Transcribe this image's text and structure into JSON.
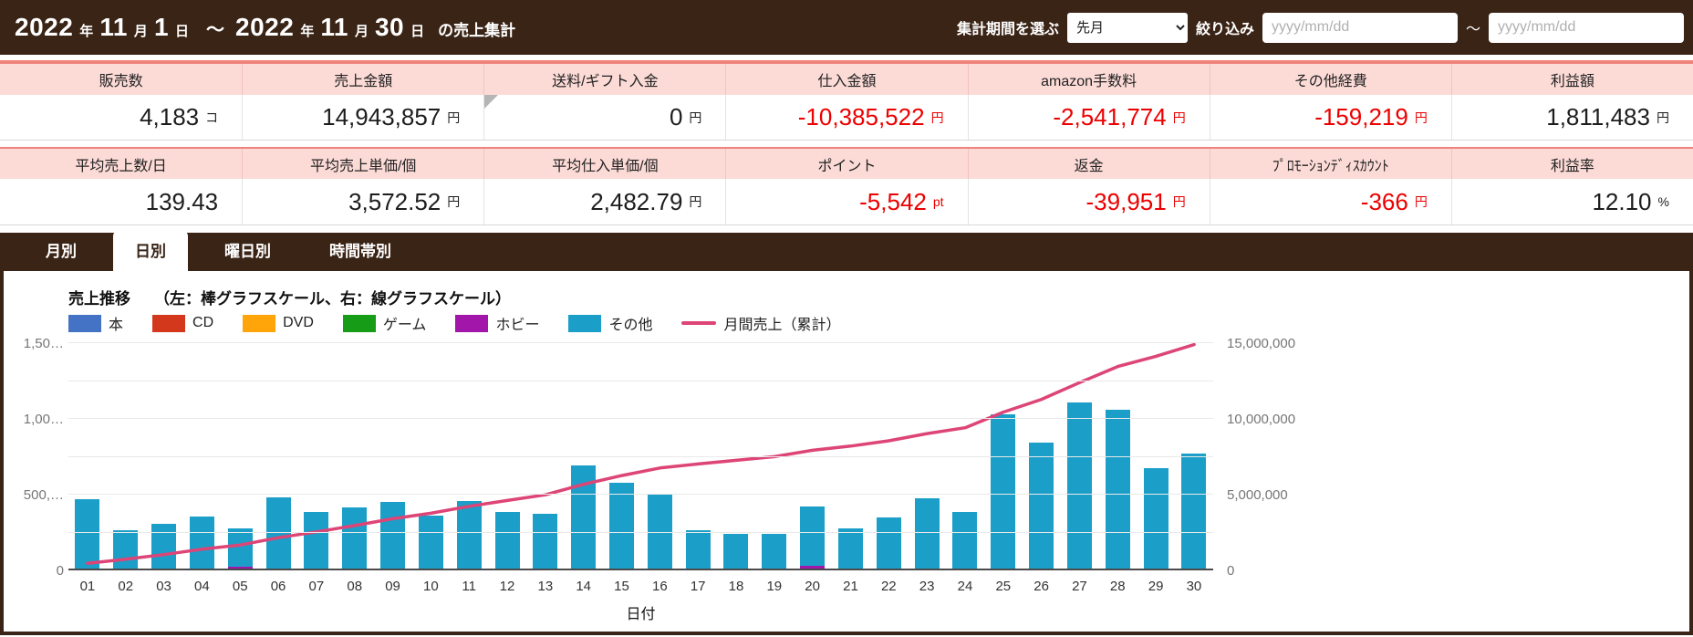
{
  "header": {
    "title_segments": [
      {
        "t": "2022",
        "s": "lg"
      },
      {
        "t": "年",
        "s": "sm"
      },
      {
        "t": "11",
        "s": "lg"
      },
      {
        "t": "月",
        "s": "sm"
      },
      {
        "t": "1",
        "s": "lg"
      },
      {
        "t": "日",
        "s": "sm"
      },
      {
        "t": "～",
        "s": "md"
      },
      {
        "t": "2022",
        "s": "lg"
      },
      {
        "t": "年",
        "s": "sm"
      },
      {
        "t": "11",
        "s": "lg"
      },
      {
        "t": "月",
        "s": "sm"
      },
      {
        "t": "30",
        "s": "lg"
      },
      {
        "t": "日",
        "s": "sm"
      },
      {
        "t": "の売上集計",
        "s": "tail"
      }
    ],
    "period_label": "集計期間を選ぶ",
    "period_value": "先月",
    "filter_label": "絞り込み",
    "date_from_placeholder": "yyyy/mm/dd",
    "date_to_placeholder": "yyyy/mm/dd",
    "range_separator": "～"
  },
  "summary": {
    "row1": {
      "headers": [
        "販売数",
        "売上金額",
        "送料/ギフト入金",
        "仕入金額",
        "amazon手数料",
        "その他経費",
        "利益額"
      ],
      "values": [
        {
          "num": "4,183",
          "unit": "コ",
          "negative": false,
          "corner": false
        },
        {
          "num": "14,943,857",
          "unit": "円",
          "negative": false,
          "corner": false
        },
        {
          "num": "0",
          "unit": "円",
          "negative": false,
          "corner": true
        },
        {
          "num": "-10,385,522",
          "unit": "円",
          "negative": true,
          "corner": false
        },
        {
          "num": "-2,541,774",
          "unit": "円",
          "negative": true,
          "corner": false
        },
        {
          "num": "-159,219",
          "unit": "円",
          "negative": true,
          "corner": false
        },
        {
          "num": "1,811,483",
          "unit": "円",
          "negative": false,
          "corner": false
        }
      ]
    },
    "row2": {
      "headers": [
        "平均売上数/日",
        "平均売上単価/個",
        "平均仕入単価/個",
        "ポイント",
        "返金",
        "ﾌﾟﾛﾓｰｼｮﾝﾃﾞｨｽｶｳﾝﾄ",
        "利益率"
      ],
      "values": [
        {
          "num": "139.43",
          "unit": "",
          "negative": false,
          "corner": false
        },
        {
          "num": "3,572.52",
          "unit": "円",
          "negative": false,
          "corner": false
        },
        {
          "num": "2,482.79",
          "unit": "円",
          "negative": false,
          "corner": false
        },
        {
          "num": "-5,542",
          "unit": "pt",
          "negative": true,
          "corner": false
        },
        {
          "num": "-39,951",
          "unit": "円",
          "negative": true,
          "corner": false
        },
        {
          "num": "-366",
          "unit": "円",
          "negative": true,
          "corner": false
        },
        {
          "num": "12.10",
          "unit": "%",
          "negative": false,
          "corner": false
        }
      ]
    }
  },
  "tabs": [
    {
      "label": "月別",
      "active": false
    },
    {
      "label": "日別",
      "active": true
    },
    {
      "label": "曜日別",
      "active": false
    },
    {
      "label": "時間帯別",
      "active": false
    }
  ],
  "chart": {
    "title": "売上推移",
    "subtitle": "（左：棒グラフスケール、右：線グラフスケール）",
    "xlabel": "日付"
  },
  "chart_data": {
    "type": "bar",
    "subtype": "stacked-bars-with-cumulative-line",
    "categories": [
      "01",
      "02",
      "03",
      "04",
      "05",
      "06",
      "07",
      "08",
      "09",
      "10",
      "11",
      "12",
      "13",
      "14",
      "15",
      "16",
      "17",
      "18",
      "19",
      "20",
      "21",
      "22",
      "23",
      "24",
      "25",
      "26",
      "27",
      "28",
      "29",
      "30"
    ],
    "xlabel": "日付",
    "left_axis": {
      "title": "棒グラフスケール",
      "max": 1500000,
      "grid_step": 250000,
      "tick_values": [
        0,
        500000,
        1000000,
        1500000
      ],
      "tick_labels": [
        "0",
        "500,…",
        "1,00…",
        "1,50…"
      ]
    },
    "right_axis": {
      "title": "線グラフスケール",
      "max": 15000000,
      "tick_values": [
        0,
        5000000,
        10000000,
        15000000
      ],
      "tick_labels": [
        "0",
        "5,000,000",
        "10,000,000",
        "15,000,000"
      ]
    },
    "series": [
      {
        "name": "本",
        "color": "#4472c4",
        "values": [
          0,
          0,
          0,
          0,
          0,
          0,
          0,
          0,
          0,
          0,
          0,
          0,
          0,
          0,
          0,
          0,
          0,
          0,
          0,
          0,
          0,
          0,
          0,
          0,
          0,
          0,
          0,
          0,
          0,
          0
        ]
      },
      {
        "name": "CD",
        "color": "#d3381c",
        "values": [
          10000,
          0,
          0,
          0,
          0,
          0,
          0,
          0,
          0,
          0,
          0,
          0,
          0,
          0,
          0,
          0,
          0,
          0,
          0,
          0,
          0,
          0,
          0,
          0,
          0,
          0,
          0,
          0,
          0,
          0
        ]
      },
      {
        "name": "DVD",
        "color": "#ffa409",
        "values": [
          0,
          0,
          0,
          0,
          0,
          0,
          0,
          0,
          0,
          0,
          0,
          0,
          0,
          0,
          0,
          0,
          0,
          0,
          0,
          0,
          0,
          0,
          0,
          0,
          0,
          0,
          0,
          0,
          0,
          0
        ]
      },
      {
        "name": "ゲーム",
        "color": "#169c16",
        "values": [
          0,
          0,
          0,
          0,
          0,
          0,
          0,
          0,
          0,
          0,
          0,
          0,
          0,
          0,
          0,
          0,
          0,
          0,
          0,
          0,
          0,
          0,
          0,
          0,
          0,
          0,
          0,
          0,
          0,
          0
        ]
      },
      {
        "name": "ホビー",
        "color": "#a216aa",
        "values": [
          0,
          0,
          0,
          0,
          22000,
          0,
          0,
          0,
          0,
          0,
          0,
          0,
          0,
          0,
          0,
          0,
          0,
          0,
          11000,
          30000,
          0,
          12000,
          12000,
          0,
          10000,
          10000,
          0,
          0,
          10000,
          15000
        ]
      },
      {
        "name": "その他",
        "color": "#1b9fc8",
        "values": [
          460000,
          265000,
          307000,
          355000,
          255000,
          482000,
          386000,
          416000,
          452000,
          361000,
          458000,
          386000,
          373000,
          693000,
          578000,
          500000,
          265000,
          241000,
          230000,
          392000,
          277000,
          338000,
          464000,
          386000,
          1020000,
          833000,
          1108000,
          1060000,
          665000,
          756000
        ]
      }
    ],
    "line": {
      "name": "月間売上（累計）",
      "color": "#dd4576",
      "axis": "right",
      "values": [
        470000,
        735000,
        1042000,
        1397000,
        1674000,
        2156000,
        2542000,
        2958000,
        3410000,
        3771000,
        4229000,
        4615000,
        4988000,
        5681000,
        6259000,
        6759000,
        7024000,
        7265000,
        7506000,
        7928000,
        8205000,
        8555000,
        9031000,
        9417000,
        10447000,
        11290000,
        12398000,
        13458000,
        14133000,
        14904000
      ]
    },
    "legend_position": "top",
    "grid": true
  },
  "colors": {
    "brand_brown": "#3a2416",
    "accent_pink": "#ef837b",
    "table_header_bg": "#fcdbd7",
    "negative_red": "#ec0000",
    "bar_other": "#1b9fc8",
    "line_pink": "#dd4576"
  }
}
